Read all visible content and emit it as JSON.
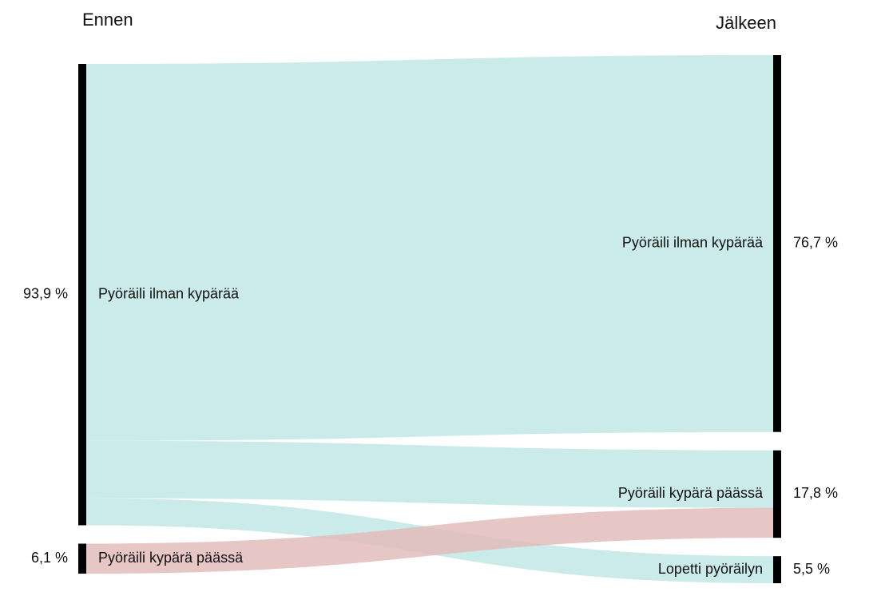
{
  "chart_data": {
    "type": "sankey",
    "columns": [
      "Ennen",
      "Jälkeen"
    ],
    "sources": [
      {
        "name": "Pyöräili ilman kypärää",
        "value": 93.9,
        "value_label": "93,9 %",
        "color": "#c2e6e6"
      },
      {
        "name": "Pyöräili kypärä päässä",
        "value": 6.1,
        "value_label": "6,1 %",
        "color": "#e3bcbc"
      }
    ],
    "targets": [
      {
        "name": "Pyöräili ilman kypärää",
        "value": 76.7,
        "value_label": "76,7 %"
      },
      {
        "name": "Pyöräili kypärä päässä",
        "value": 17.8,
        "value_label": "17,8 %"
      },
      {
        "name": "Lopetti pyöräilyn",
        "value": 5.5,
        "value_label": "5,5 %"
      }
    ],
    "links": [
      {
        "source": 0,
        "target": 0,
        "value": 76.7
      },
      {
        "source": 0,
        "target": 1,
        "value": 11.7
      },
      {
        "source": 0,
        "target": 2,
        "value": 5.5
      },
      {
        "source": 1,
        "target": 1,
        "value": 6.1
      }
    ]
  }
}
